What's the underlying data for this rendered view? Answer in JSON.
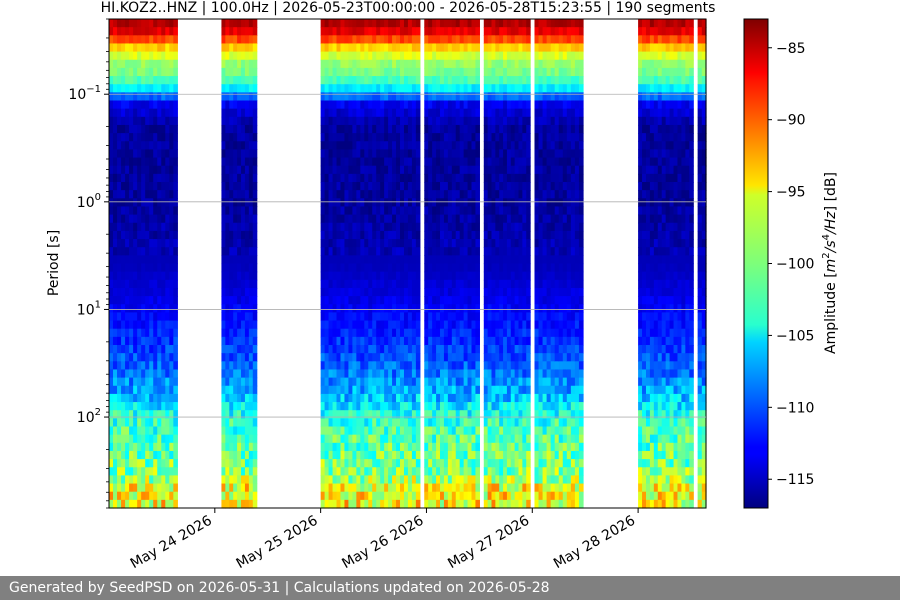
{
  "chart_data": {
    "type": "heatmap",
    "title": "HI.KOZ2..HNZ | 100.0Hz | 2026-05-23T00:00:00 - 2026-05-28T15:23:55 | 190 segments",
    "xlabel": "",
    "ylabel": "Period [s]",
    "colorbar_label": "Amplitude [m²/s⁴/Hz] [dB]",
    "x_range": [
      "2026-05-23T00:00:00",
      "2026-05-28T15:23:55"
    ],
    "x_ticks": [
      {
        "date": "2026-05-24",
        "label": "May 24 2026"
      },
      {
        "date": "2026-05-25",
        "label": "May 25 2026"
      },
      {
        "date": "2026-05-26",
        "label": "May 26 2026"
      },
      {
        "date": "2026-05-27",
        "label": "May 27 2026"
      },
      {
        "date": "2026-05-28",
        "label": "May 28 2026"
      }
    ],
    "y_scale": "log",
    "y_inverted": true,
    "y_range": [
      0.02,
      700
    ],
    "y_ticks": [
      {
        "value": 0.1,
        "base": "10",
        "exp": "−1"
      },
      {
        "value": 1,
        "base": "10",
        "exp": "0"
      },
      {
        "value": 10,
        "base": "10",
        "exp": "1"
      },
      {
        "value": 100,
        "base": "10",
        "exp": "2"
      }
    ],
    "color_range": [
      -117,
      -83
    ],
    "colormap": "jet",
    "colorbar_ticks": [
      -115,
      -110,
      -105,
      -100,
      -95,
      -90,
      -85
    ],
    "colorbar_tick_labels": [
      "−115",
      "−110",
      "−105",
      "−100",
      "−95",
      "−90",
      "−85"
    ],
    "grid": "horizontal",
    "data_segments": [
      {
        "start": "2026-05-23T00:00:00",
        "end": "2026-05-23T15:30:00"
      },
      {
        "start": "2026-05-24T01:30:00",
        "end": "2026-05-24T09:30:00"
      },
      {
        "start": "2026-05-25T00:00:00",
        "end": "2026-05-25T22:30:00"
      },
      {
        "start": "2026-05-25T23:30:00",
        "end": "2026-05-26T12:00:00"
      },
      {
        "start": "2026-05-26T13:00:00",
        "end": "2026-05-26T23:30:00"
      },
      {
        "start": "2026-05-27T00:30:00",
        "end": "2026-05-27T11:30:00"
      },
      {
        "start": "2026-05-28T00:00:00",
        "end": "2026-05-28T12:30:00"
      },
      {
        "start": "2026-05-28T13:30:00",
        "end": "2026-05-28T15:23:55"
      }
    ],
    "amplitude_profile": [
      {
        "period": 0.02,
        "db": -84
      },
      {
        "period": 0.028,
        "db": -87
      },
      {
        "period": 0.038,
        "db": -95
      },
      {
        "period": 0.05,
        "db": -99
      },
      {
        "period": 0.07,
        "db": -101
      },
      {
        "period": 0.09,
        "db": -105
      },
      {
        "period": 0.12,
        "db": -113
      },
      {
        "period": 0.2,
        "db": -116
      },
      {
        "period": 0.5,
        "db": -116
      },
      {
        "period": 1,
        "db": -116
      },
      {
        "period": 4,
        "db": -115
      },
      {
        "period": 10,
        "db": -113
      },
      {
        "period": 30,
        "db": -110
      },
      {
        "period": 60,
        "db": -107
      },
      {
        "period": 100,
        "db": -103
      },
      {
        "period": 200,
        "db": -101
      },
      {
        "period": 350,
        "db": -100
      },
      {
        "period": 450,
        "db": -96
      },
      {
        "period": 700,
        "db": -96
      }
    ]
  },
  "footer": {
    "text": "Generated by SeedPSD on 2026-05-31 | Calculations updated on 2026-05-28"
  }
}
